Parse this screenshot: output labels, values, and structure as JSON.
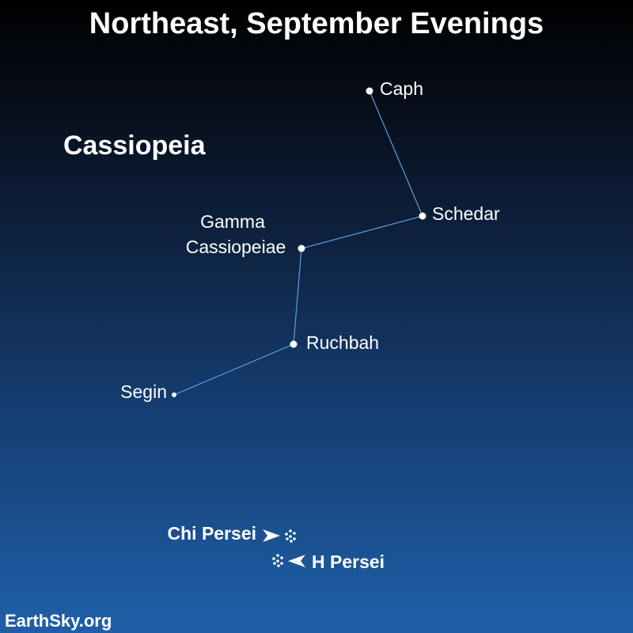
{
  "title": "Northeast, September Evenings",
  "constellation": "Cassiopeia",
  "stars": {
    "caph": "Caph",
    "schedar": "Schedar",
    "gamma_line1": "Gamma",
    "gamma_line2": "Cassiopeiae",
    "ruchbah": "Ruchbah",
    "segin": "Segin"
  },
  "clusters": {
    "chi_persei": "Chi Persei",
    "h_persei": "H Persei"
  },
  "credit": "EarthSky.org",
  "colors": {
    "sky_top": "#000000",
    "sky_bottom": "#1f5fa8",
    "lines": "#5a9fe0",
    "text": "#ffffff"
  }
}
